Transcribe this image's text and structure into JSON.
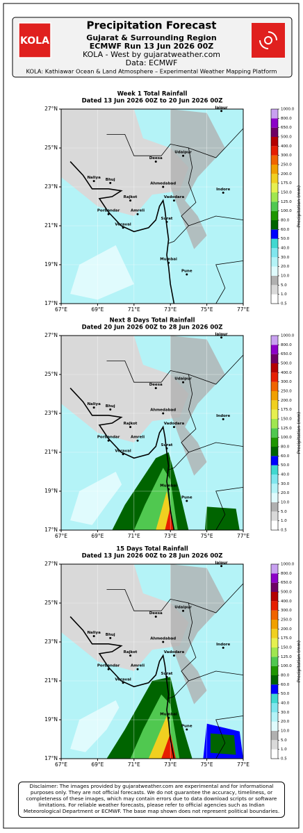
{
  "header": {
    "logo": "KOLA",
    "title": "Precipitation Forecast",
    "region": "Gujarat & Surrounding Region",
    "run": "ECMWF Run 13 Jun 2026 00Z",
    "credit": "KOLA - West by gujaratweather.com",
    "data_source": "Data: ECMWF",
    "platform": "KOLA: Kathiawar Ocean & Land Atmosphere – Experimental Weather Mapping Platform"
  },
  "panels": [
    {
      "title": "Week 1 Total Rainfall",
      "dated": "Dated 13 Jun 2026 00Z to 20 Jun 2026 00Z"
    },
    {
      "title": "Next 8 Days Total Rainfall",
      "dated": "Dated 20 Jun 2026 00Z to 28 Jun 2026 00Z"
    },
    {
      "title": "15 Days Total Rainfall",
      "dated": "Dated 13 Jun 2026 00Z to 28 Jun 2026 00Z"
    }
  ],
  "map": {
    "lon_ticks": [
      "67°E",
      "69°E",
      "71°E",
      "73°E",
      "75°E",
      "77°E"
    ],
    "lat_ticks": [
      "17°N",
      "19°N",
      "21°N",
      "23°N",
      "25°N",
      "27°N"
    ],
    "cities": [
      "Jaipur",
      "Udaipur",
      "Deesa",
      "Ahmedabad",
      "Indore",
      "Naliya",
      "Bhuj",
      "Rajkot",
      "Vadodara",
      "Porbandar",
      "Amreli",
      "Surat",
      "Veraval",
      "Mumbai",
      "Pune"
    ]
  },
  "colorbar": {
    "label": "Precipitation (mm)",
    "levels": [
      "0.5",
      "1.0",
      "5.0",
      "10.0",
      "20.0",
      "30.0",
      "40.0",
      "50.0",
      "60.0",
      "80.0",
      "100.0",
      "125.0",
      "150.0",
      "175.0",
      "200.0",
      "250.0",
      "300.0",
      "400.0",
      "500.0",
      "650.0",
      "800.0",
      "1000.0"
    ],
    "colors": [
      "#ffffff",
      "#d9d9d9",
      "#b0b0b0",
      "#e0fbfd",
      "#b4f3f7",
      "#80e6ee",
      "#40d8d0",
      "#0000ff",
      "#006400",
      "#1e9600",
      "#50c850",
      "#a0e650",
      "#e6f050",
      "#f0d020",
      "#f0a000",
      "#f06400",
      "#e61e00",
      "#b40000",
      "#6e0064",
      "#8c00c8",
      "#c8a0f0"
    ]
  },
  "disclaimer": "Disclaimer: The images provided by gujaratweather.com are experimental and for informational purposes only. They are not official forecasts. We do not guarantee the accuracy, timeliness, or completeness of these images, which may contain errors due to data download scripts or software limitations. For reliable weather forecasts, please refer to official agencies such as Indian Meteorological Department or ECMWF. The base map shown does not represent political boundaries."
}
